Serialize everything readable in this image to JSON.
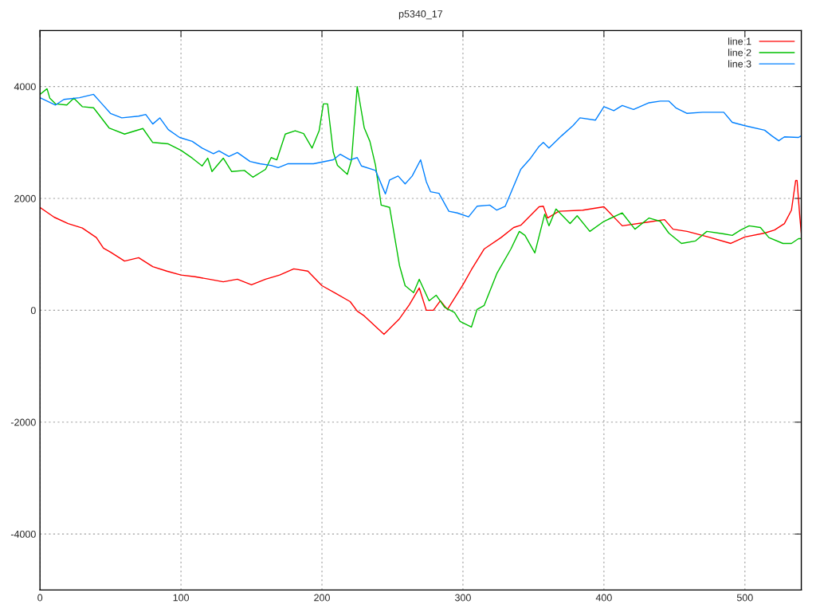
{
  "chart_data": {
    "type": "line",
    "title": "p5340_17",
    "xlim": [
      0,
      540
    ],
    "ylim": [
      -5000,
      5000
    ],
    "xticks": [
      0,
      100,
      200,
      300,
      400,
      500
    ],
    "yticks": [
      -4000,
      -2000,
      0,
      2000,
      4000
    ],
    "grid": true,
    "legend": "top right",
    "line_style": "solid",
    "series": [
      {
        "name": "line 1",
        "color": "#ff0000",
        "x": [
          0,
          10,
          20,
          30,
          40,
          45,
          50,
          60,
          70,
          80,
          90,
          100,
          110,
          120,
          130,
          140,
          150,
          160,
          170,
          180,
          190,
          200,
          210,
          220,
          225,
          230,
          244,
          255,
          262,
          269,
          274,
          279,
          284,
          289,
          300,
          306,
          315,
          327,
          336,
          341,
          354,
          357,
          360,
          368,
          385,
          400,
          413,
          432,
          443,
          449,
          459,
          474,
          490,
          500,
          514,
          521,
          528,
          533,
          536,
          537,
          539,
          540
        ],
        "values": [
          1840,
          1665,
          1550,
          1470,
          1300,
          1110,
          1040,
          880,
          940,
          780,
          700,
          630,
          600,
          555,
          510,
          555,
          455,
          555,
          630,
          740,
          700,
          440,
          300,
          155,
          -15,
          -100,
          -430,
          -150,
          100,
          400,
          0,
          0,
          170,
          15,
          455,
          725,
          1095,
          1300,
          1480,
          1520,
          1850,
          1860,
          1650,
          1770,
          1790,
          1850,
          1510,
          1580,
          1620,
          1450,
          1410,
          1310,
          1195,
          1310,
          1380,
          1435,
          1550,
          1790,
          2320,
          2320,
          1650,
          1380
        ]
      },
      {
        "name": "line 2",
        "color": "#00c000",
        "x": [
          0,
          5,
          7,
          11,
          19,
          24,
          30,
          38,
          49,
          60,
          73,
          80,
          91,
          100,
          108,
          115,
          119,
          122,
          130,
          136,
          145,
          151,
          160,
          164,
          168,
          174,
          181,
          187,
          193,
          198,
          201,
          204,
          208,
          211,
          218,
          221,
          225,
          230,
          234,
          238,
          242,
          248,
          255,
          259,
          265,
          269,
          276,
          281,
          287,
          294,
          298,
          306,
          310,
          315,
          324,
          334,
          340,
          344,
          351,
          358,
          361,
          366,
          376,
          381,
          390,
          400,
          413,
          422,
          432,
          440,
          446,
          455,
          465,
          473,
          485,
          491,
          497,
          503,
          511,
          517,
          527,
          533,
          538,
          540
        ],
        "values": [
          3860,
          3960,
          3790,
          3690,
          3670,
          3790,
          3640,
          3620,
          3260,
          3150,
          3250,
          3000,
          2975,
          2860,
          2720,
          2580,
          2720,
          2480,
          2720,
          2480,
          2500,
          2380,
          2520,
          2730,
          2690,
          3150,
          3210,
          3160,
          2900,
          3210,
          3690,
          3690,
          2830,
          2590,
          2430,
          2690,
          4000,
          3260,
          3020,
          2590,
          1880,
          1840,
          800,
          440,
          315,
          555,
          170,
          270,
          55,
          -40,
          -200,
          -300,
          15,
          85,
          655,
          1095,
          1410,
          1340,
          1025,
          1720,
          1510,
          1810,
          1550,
          1690,
          1410,
          1590,
          1740,
          1450,
          1650,
          1590,
          1380,
          1195,
          1240,
          1410,
          1365,
          1340,
          1435,
          1510,
          1480,
          1300,
          1195,
          1195,
          1280,
          1280
        ]
      },
      {
        "name": "line 3",
        "color": "#0080ff",
        "x": [
          0,
          11,
          17,
          28,
          38,
          44,
          50,
          58,
          70,
          75,
          80,
          85,
          91,
          99,
          108,
          115,
          123,
          127,
          134,
          140,
          149,
          156,
          164,
          169,
          176,
          181,
          194,
          208,
          213,
          220,
          225,
          228,
          238,
          245,
          248,
          254,
          259,
          264,
          270,
          274,
          277,
          283,
          290,
          296,
          304,
          310,
          319,
          324,
          330,
          336,
          341,
          348,
          354,
          357,
          361,
          370,
          378,
          383,
          394,
          400,
          407,
          413,
          421,
          432,
          440,
          446,
          451,
          459,
          470,
          485,
          491,
          500,
          514,
          519,
          524,
          528,
          538,
          540
        ],
        "values": [
          3800,
          3670,
          3770,
          3800,
          3860,
          3690,
          3520,
          3440,
          3470,
          3500,
          3330,
          3440,
          3230,
          3090,
          3020,
          2900,
          2800,
          2850,
          2750,
          2820,
          2660,
          2620,
          2590,
          2550,
          2620,
          2620,
          2620,
          2690,
          2790,
          2690,
          2730,
          2580,
          2500,
          2080,
          2330,
          2400,
          2260,
          2400,
          2690,
          2300,
          2120,
          2090,
          1770,
          1740,
          1670,
          1860,
          1880,
          1790,
          1860,
          2220,
          2520,
          2720,
          2930,
          3000,
          2900,
          3120,
          3300,
          3440,
          3400,
          3640,
          3570,
          3660,
          3590,
          3710,
          3740,
          3740,
          3620,
          3520,
          3540,
          3540,
          3360,
          3300,
          3220,
          3120,
          3030,
          3100,
          3090,
          3120
        ]
      }
    ]
  }
}
